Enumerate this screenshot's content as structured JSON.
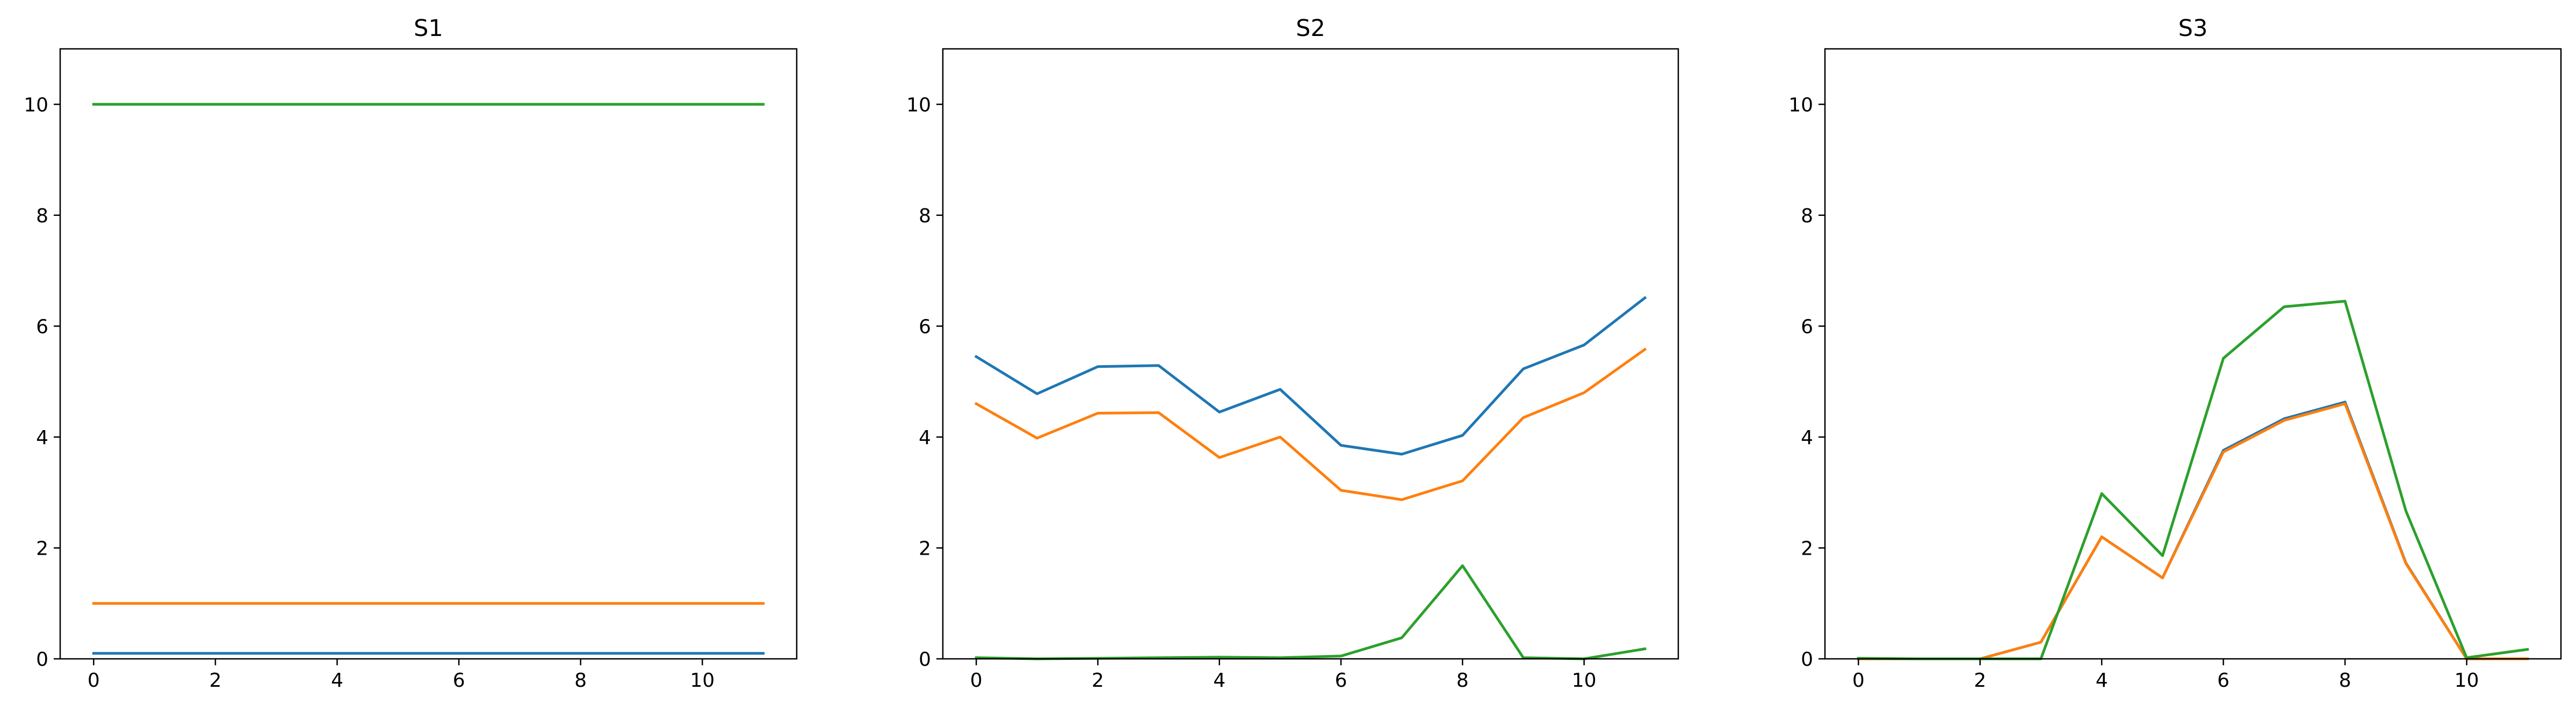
{
  "chart_data": [
    {
      "type": "line",
      "title": "S1",
      "x": [
        0,
        1,
        2,
        3,
        4,
        5,
        6,
        7,
        8,
        9,
        10,
        11
      ],
      "xlim": [
        -0.55,
        11.55
      ],
      "ylim": [
        0,
        11
      ],
      "xticks": [
        0,
        2,
        4,
        6,
        8,
        10
      ],
      "yticks": [
        0,
        2,
        4,
        6,
        8,
        10
      ],
      "grid": false,
      "series": [
        {
          "color": "#1f77b4",
          "values": [
            0.1,
            0.1,
            0.1,
            0.1,
            0.1,
            0.1,
            0.1,
            0.1,
            0.1,
            0.1,
            0.1,
            0.1
          ]
        },
        {
          "color": "#ff7f0e",
          "values": [
            1,
            1,
            1,
            1,
            1,
            1,
            1,
            1,
            1,
            1,
            1,
            1
          ]
        },
        {
          "color": "#2ca02c",
          "values": [
            10,
            10,
            10,
            10,
            10,
            10,
            10,
            10,
            10,
            10,
            10,
            10
          ]
        }
      ]
    },
    {
      "type": "line",
      "title": "S2",
      "x": [
        0,
        1,
        2,
        3,
        4,
        5,
        6,
        7,
        8,
        9,
        10,
        11
      ],
      "xlim": [
        -0.55,
        11.55
      ],
      "ylim": [
        0,
        11
      ],
      "xticks": [
        0,
        2,
        4,
        6,
        8,
        10
      ],
      "yticks": [
        0,
        2,
        4,
        6,
        8,
        10
      ],
      "grid": false,
      "series": [
        {
          "color": "#1f77b4",
          "values": [
            5.45,
            4.78,
            5.27,
            5.29,
            4.45,
            4.86,
            3.85,
            3.69,
            4.03,
            5.23,
            5.66,
            6.51
          ]
        },
        {
          "color": "#ff7f0e",
          "values": [
            4.6,
            3.98,
            4.43,
            4.44,
            3.63,
            4.0,
            3.04,
            2.87,
            3.21,
            4.35,
            4.8,
            5.58
          ]
        },
        {
          "color": "#2ca02c",
          "values": [
            0.02,
            0.0,
            0.01,
            0.02,
            0.03,
            0.02,
            0.05,
            0.38,
            1.68,
            0.02,
            0.0,
            0.18
          ]
        }
      ]
    },
    {
      "type": "line",
      "title": "S3",
      "x": [
        0,
        1,
        2,
        3,
        4,
        5,
        6,
        7,
        8,
        9,
        10,
        11
      ],
      "xlim": [
        -0.55,
        11.55
      ],
      "ylim": [
        0,
        11
      ],
      "xticks": [
        0,
        2,
        4,
        6,
        8,
        10
      ],
      "yticks": [
        0,
        2,
        4,
        6,
        8,
        10
      ],
      "grid": false,
      "series": [
        {
          "color": "#1f77b4",
          "values": [
            0.0,
            0.0,
            0.0,
            0.3,
            2.2,
            1.46,
            3.76,
            4.33,
            4.63,
            1.73,
            0.0,
            0.0
          ]
        },
        {
          "color": "#ff7f0e",
          "values": [
            0.0,
            0.0,
            0.0,
            0.3,
            2.2,
            1.46,
            3.73,
            4.3,
            4.6,
            1.72,
            0.0,
            0.0
          ]
        },
        {
          "color": "#2ca02c",
          "values": [
            0.01,
            0.0,
            0.0,
            0.0,
            2.98,
            1.86,
            5.42,
            6.35,
            6.45,
            2.67,
            0.02,
            0.17
          ]
        }
      ]
    }
  ]
}
